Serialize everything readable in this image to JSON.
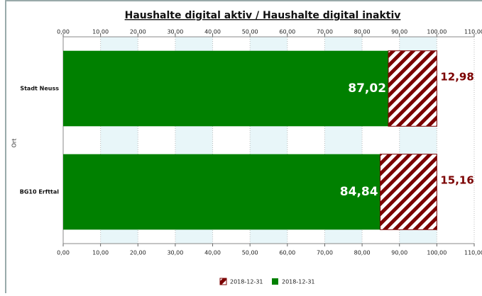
{
  "chart_data": {
    "type": "stacked_bar_horizontal",
    "title": "Haushalte digital aktiv / Haushalte digital inaktiv",
    "ylabel": "Ort",
    "categories": [
      "Stadt Neuss",
      "BG10 Erfttal"
    ],
    "series": [
      {
        "name": "2018-12-31",
        "color": "#008000",
        "values": [
          87.02,
          84.84
        ],
        "value_labels": [
          "87,02",
          "84,84"
        ]
      },
      {
        "name": "2018-12-31",
        "color": "#7b0000",
        "pattern": "hatched",
        "values": [
          12.98,
          15.16
        ],
        "value_labels": [
          "12,98",
          "15,16"
        ]
      }
    ],
    "xlim": [
      0,
      110
    ],
    "xticks": [
      {
        "value": 0,
        "label": "0,00"
      },
      {
        "value": 10,
        "label": "10,00"
      },
      {
        "value": 20,
        "label": "20,00"
      },
      {
        "value": 30,
        "label": "30,00"
      },
      {
        "value": 40,
        "label": "40,00"
      },
      {
        "value": 50,
        "label": "50,00"
      },
      {
        "value": 60,
        "label": "60,00"
      },
      {
        "value": 70,
        "label": "70,00"
      },
      {
        "value": 80,
        "label": "80,00"
      },
      {
        "value": 90,
        "label": "90,00"
      },
      {
        "value": 100,
        "label": "100,00"
      },
      {
        "value": 110,
        "label": "110,00"
      }
    ],
    "grid": true
  }
}
